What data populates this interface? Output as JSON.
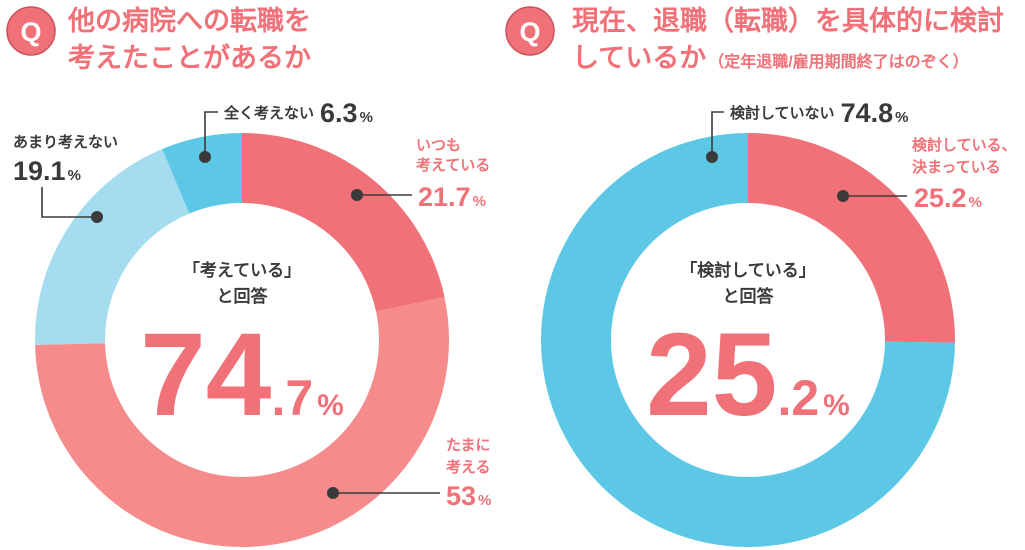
{
  "chart_data": [
    {
      "type": "pie",
      "variant": "donut",
      "title": "他の病院への転職を考えたことがあるか",
      "title_lines": [
        "他の病院への転職を",
        "考えたことがあるか"
      ],
      "q_badge": "Q",
      "center": {
        "line1": "「考えている」",
        "line2": "と回答",
        "value_int": "74",
        "value_dec": ".7",
        "unit": "%"
      },
      "slices": [
        {
          "label": "いつも考えている",
          "label_lines": [
            "いつも",
            "考えている"
          ],
          "value": 21.7,
          "value_text": "21.7",
          "color": "#f07178",
          "text_color": "#f07178"
        },
        {
          "label": "たまに考える",
          "label_lines": [
            "たまに",
            "考える"
          ],
          "value": 53,
          "value_text": "53",
          "color": "#f58b8a",
          "text_color": "#f07178"
        },
        {
          "label": "あまり考えない",
          "label_lines": [
            "あまり考えない"
          ],
          "value": 19.1,
          "value_text": "19.1",
          "color": "#a6dcf0",
          "text_color": "#3a3a3a"
        },
        {
          "label": "全く考えない",
          "label_lines": [
            "全く考えない"
          ],
          "value": 6.3,
          "value_text": "6.3",
          "color": "#5cc8e6",
          "text_color": "#3a3a3a"
        }
      ],
      "unit": "%"
    },
    {
      "type": "pie",
      "variant": "donut",
      "title": "現在、退職(転職)を具体的に検討しているか(定年退職/雇用期間終了はのぞく)",
      "title_lines": [
        "現在、退職（転職）を具体的に検討",
        "しているか"
      ],
      "subtitle": "（定年退職/雇用期間終了はのぞく）",
      "q_badge": "Q",
      "center": {
        "line1": "「検討している」",
        "line2": "と回答",
        "value_int": "25",
        "value_dec": ".2",
        "unit": "%"
      },
      "slices": [
        {
          "label": "検討している、決まっている",
          "label_lines": [
            "検討している、",
            "決まっている"
          ],
          "value": 25.2,
          "value_text": "25.2",
          "color": "#f07178",
          "text_color": "#f07178"
        },
        {
          "label": "検討していない",
          "label_lines": [
            "検討していない"
          ],
          "value": 74.8,
          "value_text": "74.8",
          "color": "#5cc8e6",
          "text_color": "#3a3a3a"
        }
      ],
      "unit": "%"
    }
  ]
}
